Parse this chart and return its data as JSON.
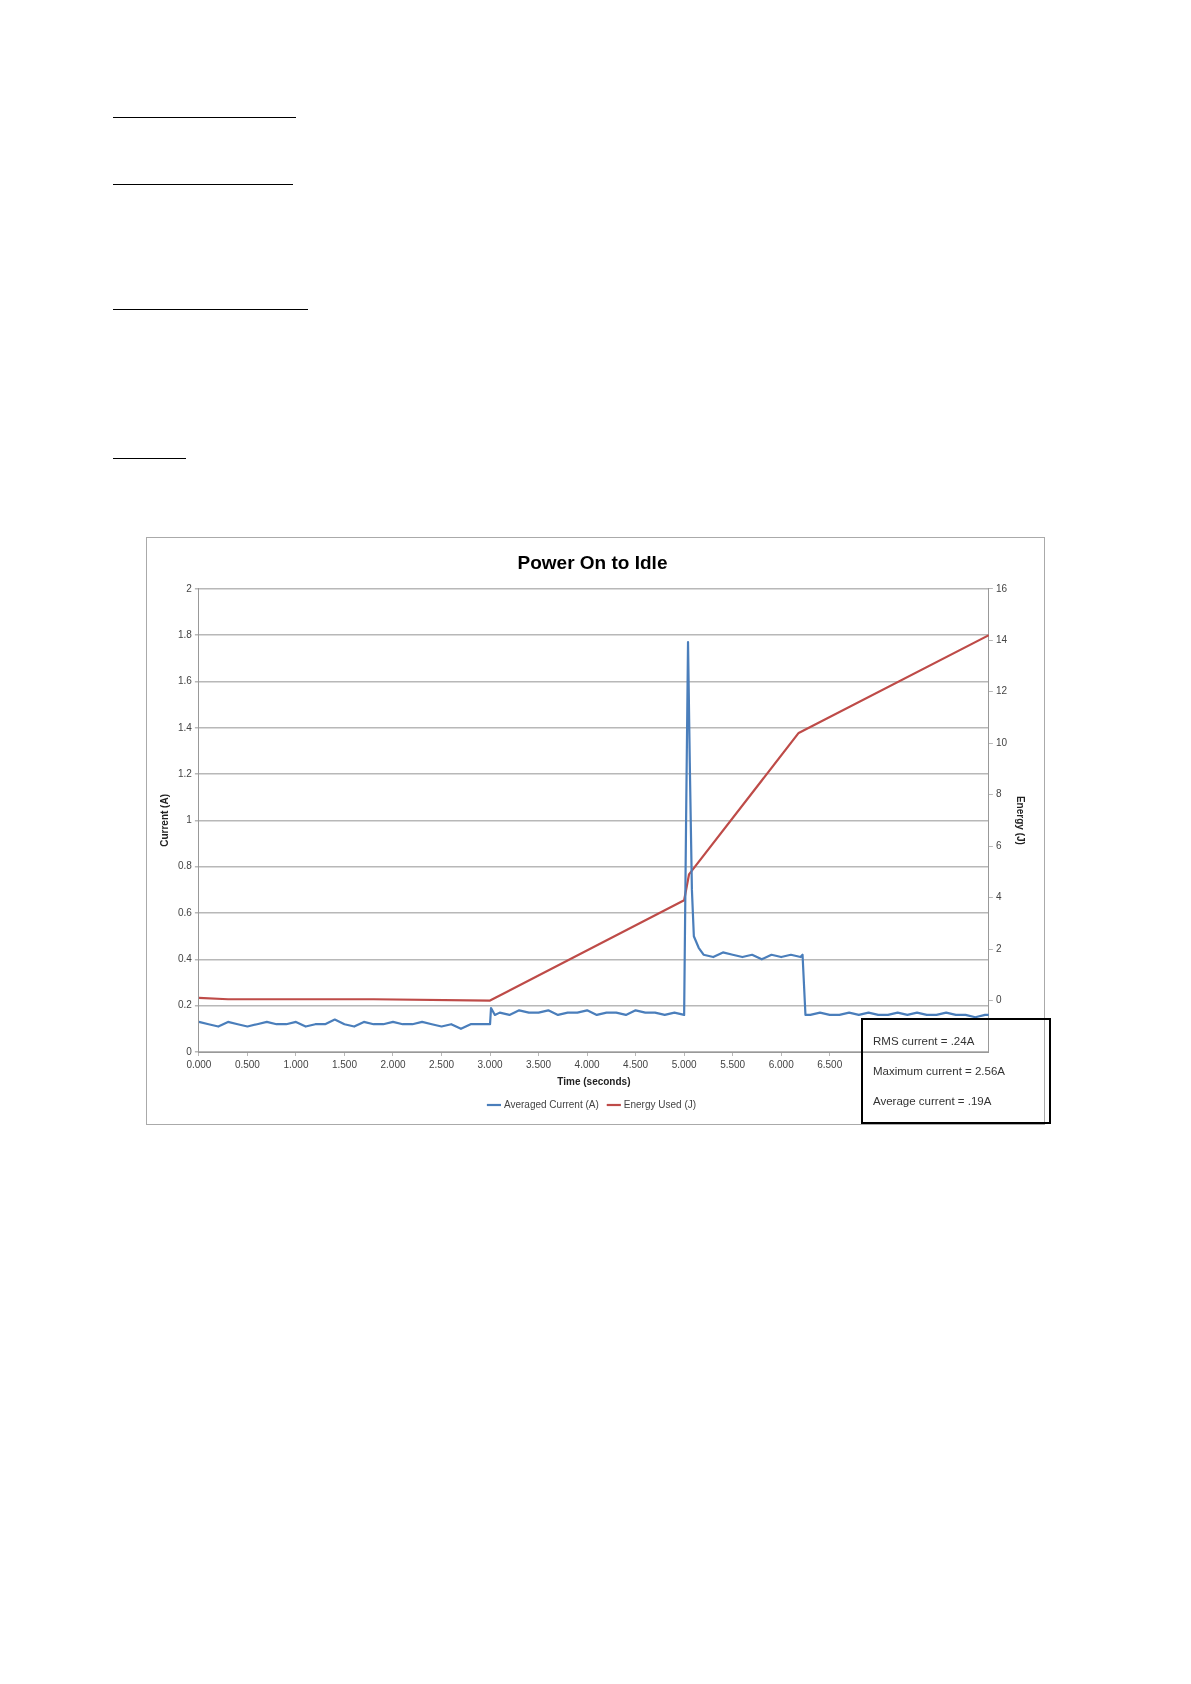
{
  "chart_data": {
    "type": "line",
    "title": "Power On to Idle",
    "xlabel": "Time (seconds)",
    "ylabel": "Current (A)",
    "y2label": "Energy (J)",
    "xlim": [
      0,
      8.14
    ],
    "xticks": [
      {
        "value": 0,
        "label": "0.000"
      },
      {
        "value": 0.5,
        "label": "0.500"
      },
      {
        "value": 1,
        "label": "1.000"
      },
      {
        "value": 1.5,
        "label": "1.500"
      },
      {
        "value": 2,
        "label": "2.000"
      },
      {
        "value": 2.5,
        "label": "2.500"
      },
      {
        "value": 3,
        "label": "3.000"
      },
      {
        "value": 3.5,
        "label": "3.500"
      },
      {
        "value": 4,
        "label": "4.000"
      },
      {
        "value": 4.5,
        "label": "4.500"
      },
      {
        "value": 5,
        "label": "5.000"
      },
      {
        "value": 5.5,
        "label": "5.500"
      },
      {
        "value": 6,
        "label": "6.000"
      },
      {
        "value": 6.5,
        "label": "6.500"
      }
    ],
    "ylim": [
      0,
      2
    ],
    "yticks": [
      0,
      0.2,
      0.4,
      0.6,
      0.8,
      1,
      1.2,
      1.4,
      1.6,
      1.8,
      2
    ],
    "y2lim": [
      -2,
      16
    ],
    "y2ticks": [
      0,
      2,
      4,
      6,
      8,
      10,
      12,
      14,
      16
    ],
    "grid": "y",
    "legend": "bottom",
    "marker": "none",
    "line_style": "solid",
    "series": [
      {
        "name": "Averaged Current (A)",
        "color": "#4a7ebb",
        "x": [
          0,
          0.1,
          0.2,
          0.3,
          0.4,
          0.5,
          0.6,
          0.7,
          0.8,
          0.9,
          1,
          1.1,
          1.2,
          1.3,
          1.4,
          1.5,
          1.6,
          1.7,
          1.8,
          1.9,
          2,
          2.1,
          2.2,
          2.3,
          2.4,
          2.5,
          2.6,
          2.7,
          2.8,
          2.9,
          3,
          3.01,
          3.05,
          3.1,
          3.2,
          3.3,
          3.4,
          3.5,
          3.6,
          3.7,
          3.8,
          3.9,
          4,
          4.1,
          4.2,
          4.3,
          4.4,
          4.5,
          4.6,
          4.7,
          4.8,
          4.9,
          5,
          5.02,
          5.04,
          5.06,
          5.08,
          5.1,
          5.15,
          5.2,
          5.3,
          5.4,
          5.5,
          5.6,
          5.7,
          5.8,
          5.9,
          6,
          6.1,
          6.2,
          6.22,
          6.25,
          6.3,
          6.4,
          6.5,
          6.6,
          6.7,
          6.8,
          6.9,
          7,
          7.1,
          7.2,
          7.3,
          7.4,
          7.5,
          7.6,
          7.7,
          7.8,
          7.9,
          8,
          8.1,
          8.14
        ],
        "values": [
          0.13,
          0.12,
          0.11,
          0.13,
          0.12,
          0.11,
          0.12,
          0.13,
          0.12,
          0.12,
          0.13,
          0.11,
          0.12,
          0.12,
          0.14,
          0.12,
          0.11,
          0.13,
          0.12,
          0.12,
          0.13,
          0.12,
          0.12,
          0.13,
          0.12,
          0.11,
          0.12,
          0.1,
          0.12,
          0.12,
          0.12,
          0.19,
          0.16,
          0.17,
          0.16,
          0.18,
          0.17,
          0.17,
          0.18,
          0.16,
          0.17,
          0.17,
          0.18,
          0.16,
          0.17,
          0.17,
          0.16,
          0.18,
          0.17,
          0.17,
          0.16,
          0.17,
          0.16,
          1.0,
          1.77,
          1.2,
          0.7,
          0.5,
          0.45,
          0.42,
          0.41,
          0.43,
          0.42,
          0.41,
          0.42,
          0.4,
          0.42,
          0.41,
          0.42,
          0.41,
          0.42,
          0.16,
          0.16,
          0.17,
          0.16,
          0.16,
          0.17,
          0.16,
          0.17,
          0.16,
          0.16,
          0.17,
          0.16,
          0.17,
          0.16,
          0.16,
          0.17,
          0.16,
          0.16,
          0.15,
          0.16,
          0.16
        ]
      },
      {
        "name": "Energy Used (J)",
        "color": "#be4b48",
        "axis": "y2",
        "x": [
          0,
          0.3,
          1.8,
          3,
          5,
          5.05,
          6.18,
          8.14
        ],
        "values": [
          0.1,
          0.05,
          0.05,
          0,
          3.9,
          4.9,
          10.4,
          14.2
        ]
      }
    ],
    "annotations": [
      "RMS current = .24A",
      "Maximum current = 2.56A",
      "Average current = .19A"
    ]
  }
}
